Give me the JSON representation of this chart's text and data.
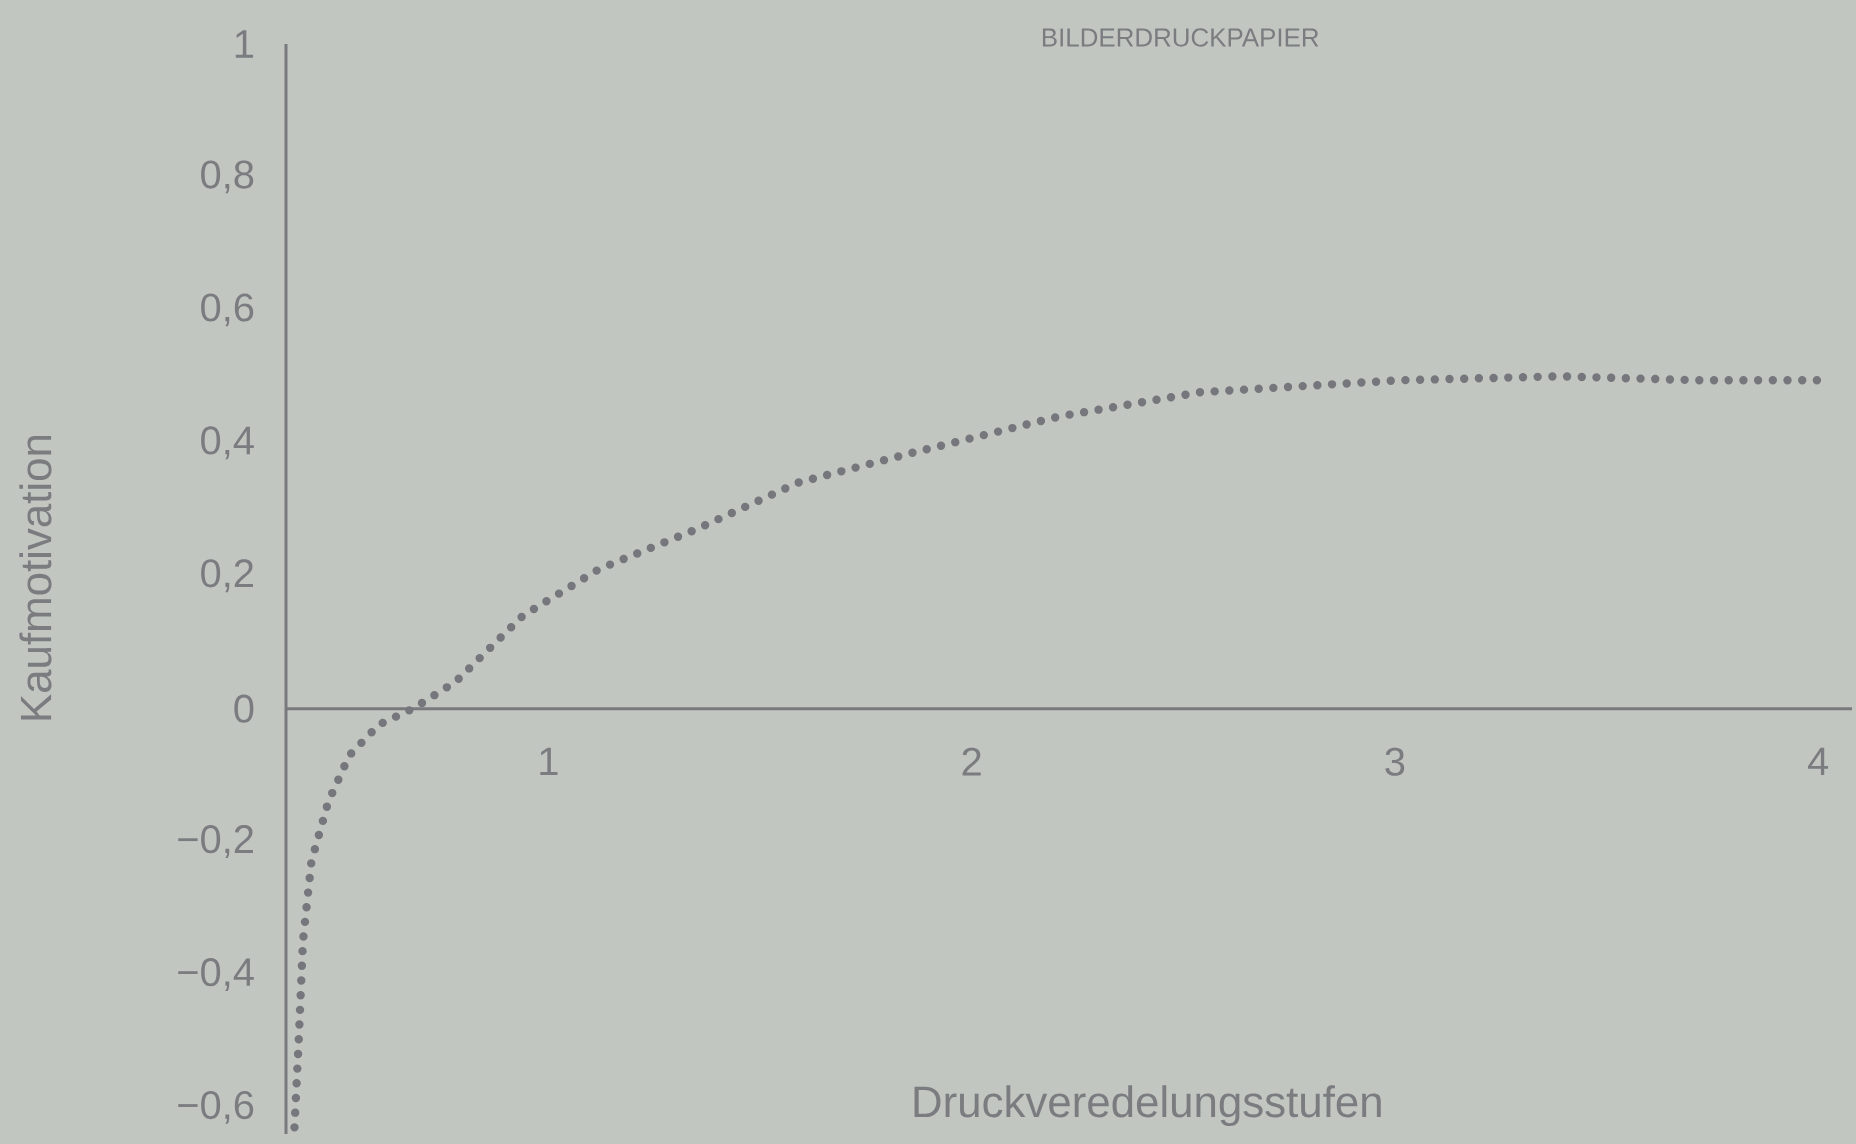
{
  "chart_data": {
    "type": "line",
    "title": "BILDERDRUCKPAPIER",
    "xlabel": "Druckveredelungsstufen",
    "ylabel": "Kaufmotivation",
    "x": [
      0.4,
      0.41,
      0.42,
      0.44,
      0.48,
      0.53,
      0.6,
      0.68,
      0.78,
      0.94,
      1.12,
      1.35,
      1.59,
      1.86,
      2.21,
      2.54,
      3.01,
      3.39,
      3.72,
      4.02
    ],
    "series": [
      {
        "color": "#75777c",
        "values": [
          -0.63,
          -0.5,
          -0.35,
          -0.23,
          -0.14,
          -0.07,
          -0.024,
          0,
          0.04,
          0.14,
          0.21,
          0.27,
          0.34,
          0.385,
          0.44,
          0.476,
          0.494,
          0.5,
          0.494,
          0.494
        ]
      }
    ],
    "xlim": [
      0.38,
      4.08
    ],
    "ylim": [
      -0.64,
      1
    ],
    "xticks": [
      1,
      2,
      3,
      4
    ],
    "yticks": [
      {
        "value": -0.6,
        "label": "−0,6"
      },
      {
        "value": -0.4,
        "label": "−0,4"
      },
      {
        "value": -0.2,
        "label": "−0,2"
      },
      0,
      {
        "value": 0.2,
        "label": "0,2"
      },
      {
        "value": 0.4,
        "label": "0,4"
      },
      {
        "value": 0.6,
        "label": "0,6"
      },
      {
        "value": 0.8,
        "label": "0,8"
      },
      1
    ],
    "marker": "none",
    "line_style": "dotted"
  }
}
